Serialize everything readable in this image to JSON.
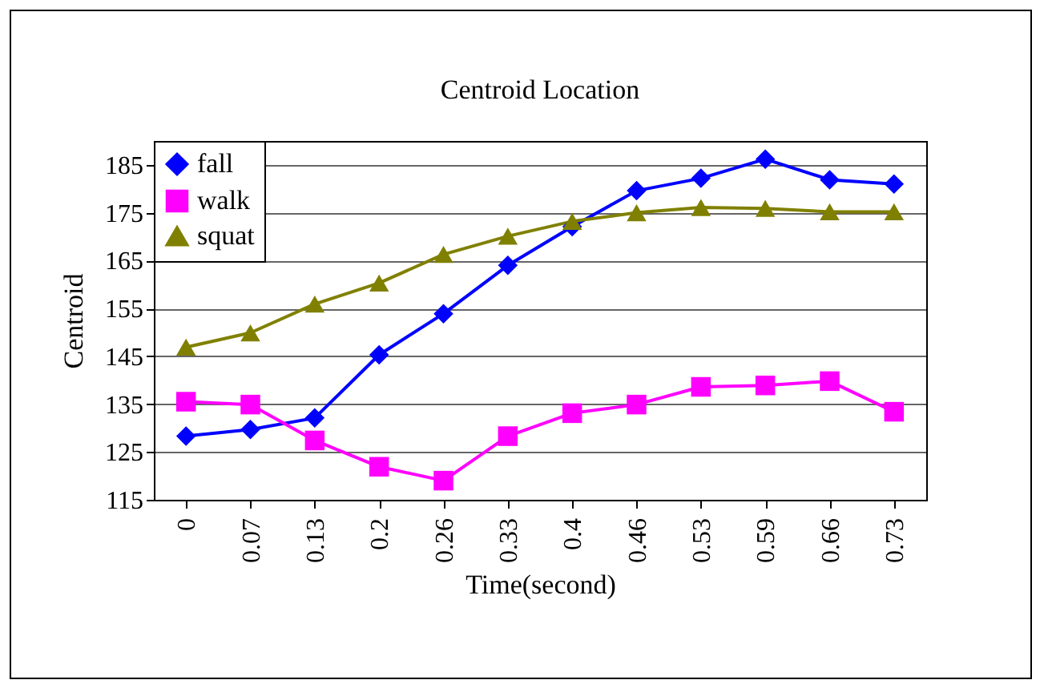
{
  "chart_data": {
    "type": "line",
    "title": "Centroid Location",
    "xlabel": "Time(second)",
    "ylabel": "Centroid",
    "categories": [
      "0",
      "0.07",
      "0.13",
      "0.2",
      "0.26",
      "0.33",
      "0.4",
      "0.46",
      "0.53",
      "0.59",
      "0.66",
      "0.73"
    ],
    "series": [
      {
        "name": "fall",
        "color": "#0000ff",
        "marker": "diamond",
        "values": [
          128.3,
          129.7,
          132.1,
          145.3,
          153.9,
          164.0,
          172.1,
          179.6,
          182.2,
          186.2,
          181.9,
          181.0
        ]
      },
      {
        "name": "walk",
        "color": "#ff00ff",
        "marker": "square",
        "values": [
          135.5,
          134.9,
          127.4,
          121.9,
          119.0,
          128.3,
          133.1,
          134.9,
          138.6,
          138.9,
          139.8,
          133.4
        ]
      },
      {
        "name": "squat",
        "color": "#808000",
        "marker": "triangle",
        "values": [
          146.9,
          149.9,
          155.9,
          160.3,
          166.3,
          170.1,
          173.2,
          175.0,
          176.1,
          175.9,
          175.2,
          175.2
        ]
      }
    ],
    "ylim": [
      115,
      190
    ],
    "yticks": [
      115,
      125,
      135,
      145,
      155,
      165,
      175,
      185
    ],
    "grid": "y",
    "legend": "top left"
  }
}
